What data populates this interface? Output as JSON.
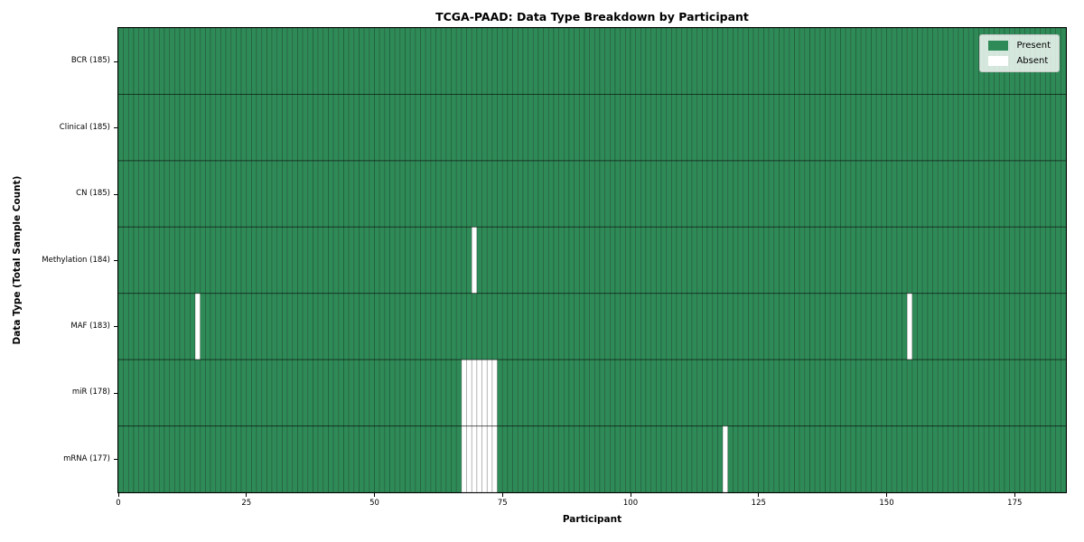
{
  "chart_data": {
    "type": "heatmap",
    "title": "TCGA-PAAD: Data Type Breakdown by Participant",
    "xlabel": "Participant",
    "ylabel": "Data Type (Total Sample Count)",
    "n_participants": 185,
    "x_ticks": [
      0,
      25,
      50,
      75,
      100,
      125,
      150,
      175
    ],
    "grid": false,
    "rows": [
      {
        "label": "BCR (185)",
        "data_type": "BCR",
        "sample_count": 185,
        "absent_participants": []
      },
      {
        "label": "Clinical (185)",
        "data_type": "Clinical",
        "sample_count": 185,
        "absent_participants": []
      },
      {
        "label": "CN (185)",
        "data_type": "CN",
        "sample_count": 185,
        "absent_participants": []
      },
      {
        "label": "Methylation (184)",
        "data_type": "Methylation",
        "sample_count": 184,
        "absent_participants": [
          69
        ]
      },
      {
        "label": "MAF (183)",
        "data_type": "MAF",
        "sample_count": 183,
        "absent_participants": [
          15,
          154
        ]
      },
      {
        "label": "miR (178)",
        "data_type": "miR",
        "sample_count": 178,
        "absent_participants": [
          67,
          68,
          69,
          70,
          71,
          72,
          73
        ]
      },
      {
        "label": "mRNA (177)",
        "data_type": "mRNA",
        "sample_count": 177,
        "absent_participants": [
          67,
          68,
          69,
          70,
          71,
          72,
          73,
          118
        ]
      }
    ],
    "legend": {
      "position": "upper right",
      "entries": [
        {
          "label": "Present",
          "color": "#2e8b57"
        },
        {
          "label": "Absent",
          "color": "#ffffff"
        }
      ]
    },
    "colors": {
      "present": "#2e8b57",
      "absent": "#ffffff"
    }
  }
}
